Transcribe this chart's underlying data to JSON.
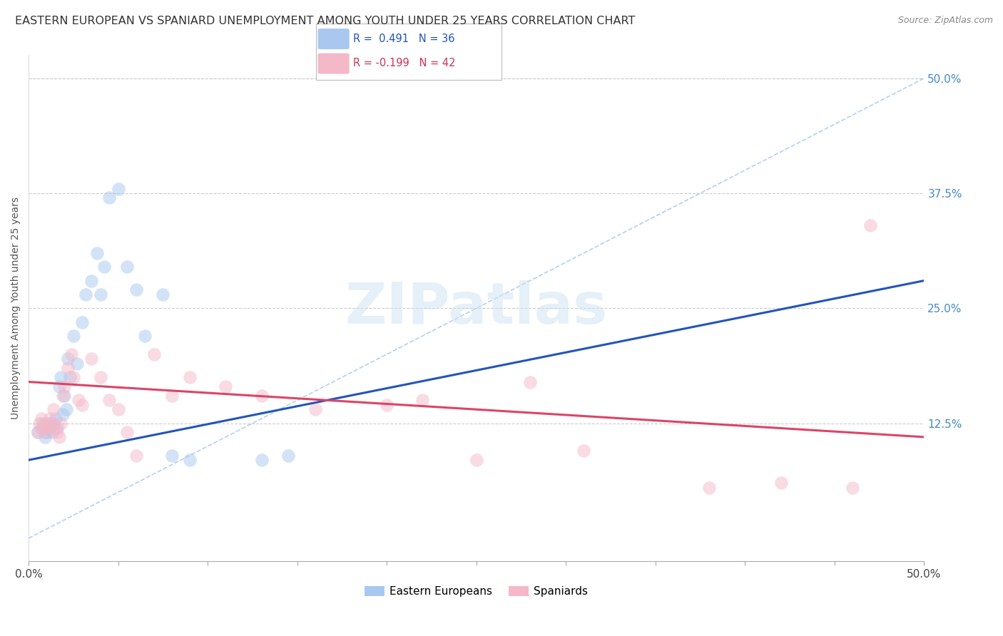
{
  "title": "EASTERN EUROPEAN VS SPANIARD UNEMPLOYMENT AMONG YOUTH UNDER 25 YEARS CORRELATION CHART",
  "source": "Source: ZipAtlas.com",
  "ylabel": "Unemployment Among Youth under 25 years",
  "xlim": [
    0.0,
    0.5
  ],
  "ylim": [
    -0.025,
    0.525
  ],
  "yticks_right": [
    0.125,
    0.25,
    0.375,
    0.5
  ],
  "ytick_labels_right": [
    "12.5%",
    "25.0%",
    "37.5%",
    "50.0%"
  ],
  "blue_color": "#a8c8f0",
  "pink_color": "#f4b8c8",
  "trend_blue": "#2255bb",
  "trend_pink": "#dd4466",
  "diag_color": "#aaccee",
  "watermark": "ZIPatlas",
  "blue_scatter_x": [
    0.005,
    0.007,
    0.008,
    0.009,
    0.01,
    0.011,
    0.012,
    0.013,
    0.014,
    0.015,
    0.016,
    0.017,
    0.018,
    0.019,
    0.02,
    0.021,
    0.022,
    0.023,
    0.025,
    0.027,
    0.03,
    0.032,
    0.035,
    0.038,
    0.04,
    0.042,
    0.045,
    0.05,
    0.055,
    0.06,
    0.065,
    0.075,
    0.08,
    0.09,
    0.13,
    0.145
  ],
  "blue_scatter_y": [
    0.115,
    0.12,
    0.125,
    0.11,
    0.115,
    0.12,
    0.125,
    0.115,
    0.125,
    0.13,
    0.12,
    0.165,
    0.175,
    0.135,
    0.155,
    0.14,
    0.195,
    0.175,
    0.22,
    0.19,
    0.235,
    0.265,
    0.28,
    0.31,
    0.265,
    0.295,
    0.37,
    0.38,
    0.295,
    0.27,
    0.22,
    0.265,
    0.09,
    0.085,
    0.085,
    0.09
  ],
  "pink_scatter_x": [
    0.005,
    0.006,
    0.007,
    0.008,
    0.009,
    0.01,
    0.011,
    0.012,
    0.013,
    0.014,
    0.015,
    0.016,
    0.017,
    0.018,
    0.019,
    0.02,
    0.022,
    0.024,
    0.025,
    0.028,
    0.03,
    0.035,
    0.04,
    0.045,
    0.05,
    0.055,
    0.06,
    0.07,
    0.08,
    0.09,
    0.11,
    0.13,
    0.16,
    0.2,
    0.22,
    0.25,
    0.28,
    0.31,
    0.38,
    0.42,
    0.46,
    0.47
  ],
  "pink_scatter_y": [
    0.115,
    0.125,
    0.13,
    0.12,
    0.115,
    0.125,
    0.12,
    0.13,
    0.125,
    0.14,
    0.12,
    0.115,
    0.11,
    0.125,
    0.155,
    0.165,
    0.185,
    0.2,
    0.175,
    0.15,
    0.145,
    0.195,
    0.175,
    0.15,
    0.14,
    0.115,
    0.09,
    0.2,
    0.155,
    0.175,
    0.165,
    0.155,
    0.14,
    0.145,
    0.15,
    0.085,
    0.17,
    0.095,
    0.055,
    0.06,
    0.055,
    0.34
  ],
  "blue_trend_y_start": 0.085,
  "blue_trend_y_end": 0.28,
  "pink_trend_y_start": 0.17,
  "pink_trend_y_end": 0.11,
  "grid_color": "#cccccc",
  "bg_color": "#ffffff",
  "title_fontsize": 11.5,
  "label_fontsize": 10,
  "tick_fontsize": 11,
  "scatter_size": 180,
  "scatter_alpha": 0.5,
  "scatter_lw": 0.0
}
